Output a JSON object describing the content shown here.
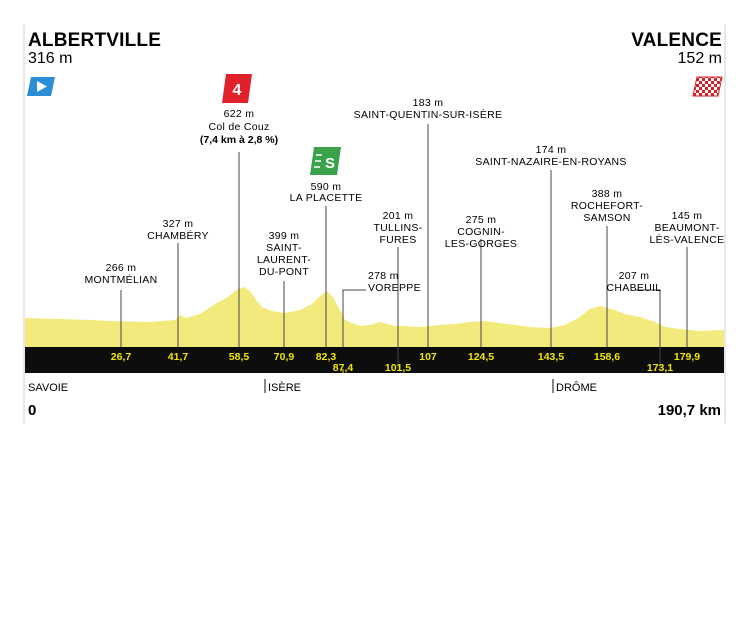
{
  "start": {
    "name": "ALBERTVILLE",
    "altitude": "316 m"
  },
  "finish": {
    "name": "VALENCE",
    "altitude": "152 m"
  },
  "colors": {
    "profile_fill": "#f3ea7d",
    "axis_bar": "#0d0d0d",
    "km_label": "#f2e500",
    "climb_red": "#e0202a",
    "sprint_green": "#3aa24a",
    "start_flag": "#2a8fd6"
  },
  "climb": {
    "category": "4",
    "altitude": "622 m",
    "name": "Col de Couz",
    "detail": "(7,4 km à 2,8 %)"
  },
  "sprint": {
    "symbol": "S",
    "altitude": "590 m",
    "name": "LA PLACETTE"
  },
  "waypoints": [
    {
      "km": "26,7",
      "alt": "266 m",
      "name": [
        "MONTMÉLIAN"
      ]
    },
    {
      "km": "41,7",
      "alt": "327 m",
      "name": [
        "CHAMBÉRY"
      ]
    },
    {
      "km": "58,5",
      "alt": "",
      "name": []
    },
    {
      "km": "70,9",
      "alt": "399 m",
      "name": [
        "SAINT-",
        "LAURENT-",
        "DU-PONT"
      ]
    },
    {
      "km": "82,3",
      "alt": "",
      "name": []
    },
    {
      "km": "87,4",
      "alt": "278 m",
      "name": [
        "VOREPPE"
      ]
    },
    {
      "km": "101,5",
      "alt": "201 m",
      "name": [
        "TULLINS-",
        "FURES"
      ]
    },
    {
      "km": "107",
      "alt": "183 m",
      "name": [
        "SAINT-QUENTIN-SUR-ISÈRE"
      ]
    },
    {
      "km": "124,5",
      "alt": "275 m",
      "name": [
        "COGNIN-",
        "LES-GORGES"
      ]
    },
    {
      "km": "143,5",
      "alt": "174 m",
      "name": [
        "SAINT-NAZAIRE-EN-ROYANS"
      ]
    },
    {
      "km": "158,6",
      "alt": "388 m",
      "name": [
        "ROCHEFORT-",
        "SAMSON"
      ]
    },
    {
      "km": "173,1",
      "alt": "207 m",
      "name": [
        "CHABEUIL"
      ]
    },
    {
      "km": "179,9",
      "alt": "145 m",
      "name": [
        "BEAUMONT-",
        "LÈS-VALENCE"
      ]
    }
  ],
  "regions": [
    "SAVOIE",
    "ISÈRE",
    "DRÔME"
  ],
  "distance": {
    "start": "0",
    "total": "190,7 km"
  }
}
